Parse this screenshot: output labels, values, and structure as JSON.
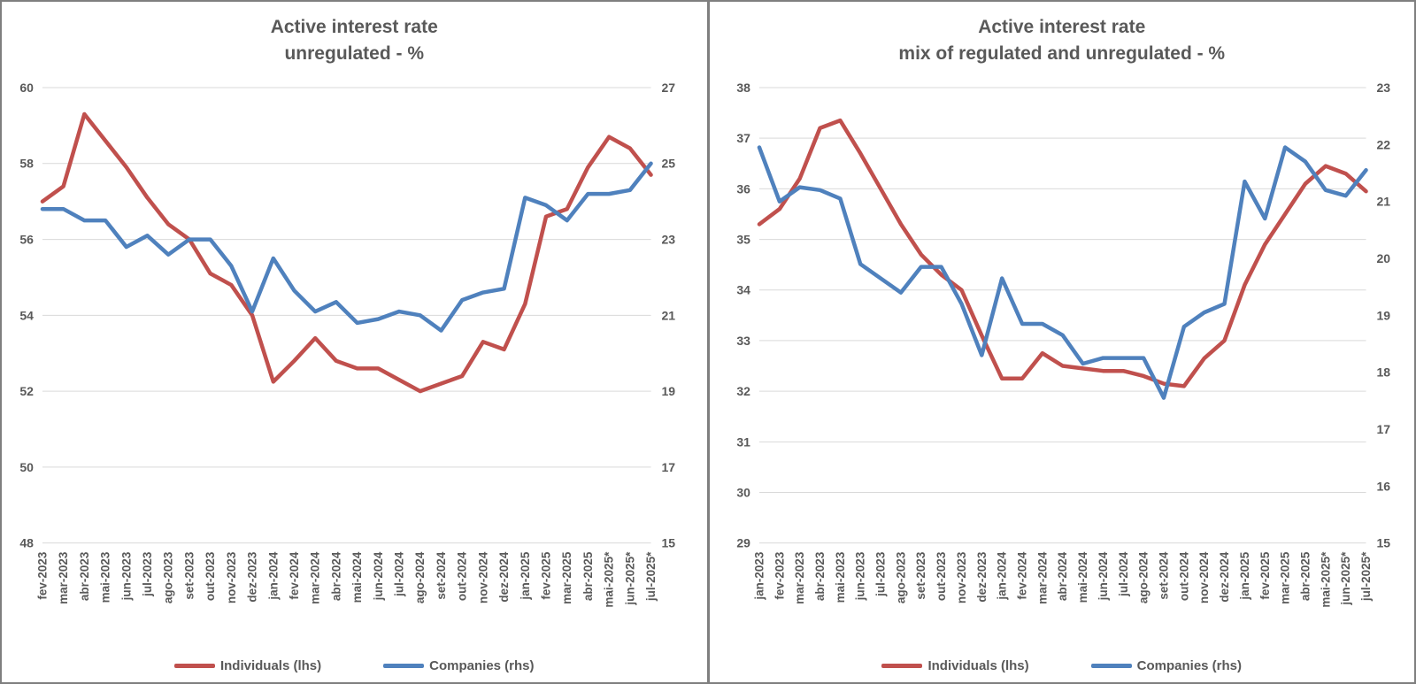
{
  "colors": {
    "individuals": "#C0504D",
    "companies": "#4F81BD",
    "grid": "#D9D9D9",
    "axis_text": "#595959",
    "title_text": "#595959",
    "panel_border": "#7F7F7F"
  },
  "chart_data": [
    {
      "type": "line",
      "title_line1": "Active interest rate",
      "title_line2": "unregulated - %",
      "grid": true,
      "legend_position": "bottom",
      "categories": [
        "fev-2023",
        "mar-2023",
        "abr-2023",
        "mai-2023",
        "jun-2023",
        "jul-2023",
        "ago-2023",
        "set-2023",
        "out-2023",
        "nov-2023",
        "dez-2023",
        "jan-2024",
        "fev-2024",
        "mar-2024",
        "abr-2024",
        "mai-2024",
        "jun-2024",
        "jul-2024",
        "ago-2024",
        "set-2024",
        "out-2024",
        "nov-2024",
        "dez-2024",
        "jan-2025",
        "fev-2025",
        "mar-2025",
        "abr-2025",
        "mai-2025*",
        "jun-2025*",
        "jul-2025*"
      ],
      "left_axis": {
        "min": 48,
        "max": 60,
        "ticks": [
          60,
          58,
          56,
          54,
          52,
          50,
          48
        ]
      },
      "right_axis": {
        "min": 15,
        "max": 27,
        "ticks": [
          27,
          25,
          23,
          21,
          19,
          17,
          15
        ]
      },
      "series": [
        {
          "name": "Individuals (lhs)",
          "axis": "left",
          "color": "#C0504D",
          "values": [
            57.0,
            57.4,
            59.3,
            58.6,
            57.9,
            57.1,
            56.4,
            56.0,
            55.1,
            54.8,
            54.0,
            52.25,
            52.8,
            53.4,
            52.8,
            52.6,
            52.6,
            52.3,
            52.0,
            52.2,
            52.4,
            53.3,
            53.1,
            54.3,
            56.6,
            56.8,
            57.9,
            58.7,
            58.4,
            57.7
          ]
        },
        {
          "name": "Companies (rhs)",
          "axis": "right",
          "color": "#4F81BD",
          "values": [
            23.8,
            23.8,
            23.5,
            23.5,
            22.8,
            23.1,
            22.6,
            23.0,
            23.0,
            22.3,
            21.1,
            22.5,
            21.65,
            21.1,
            21.35,
            20.8,
            20.9,
            21.1,
            21.0,
            20.6,
            21.4,
            21.6,
            21.7,
            24.1,
            23.9,
            23.5,
            24.2,
            24.2,
            24.3,
            25.0
          ]
        }
      ]
    },
    {
      "type": "line",
      "title_line1": "Active interest rate",
      "title_line2": "mix of regulated and unregulated - %",
      "grid": true,
      "legend_position": "bottom",
      "categories": [
        "jan-2023",
        "fev-2023",
        "mar-2023",
        "abr-2023",
        "mai-2023",
        "jun-2023",
        "jul-2023",
        "ago-2023",
        "set-2023",
        "out-2023",
        "nov-2023",
        "dez-2023",
        "jan-2024",
        "fev-2024",
        "mar-2024",
        "abr-2024",
        "mai-2024",
        "jun-2024",
        "jul-2024",
        "ago-2024",
        "set-2024",
        "out-2024",
        "nov-2024",
        "dez-2024",
        "jan-2025",
        "fev-2025",
        "mar-2025",
        "abr-2025",
        "mai-2025*",
        "jun-2025*",
        "jul-2025*"
      ],
      "left_axis": {
        "min": 29,
        "max": 38,
        "ticks": [
          38,
          37,
          36,
          35,
          34,
          33,
          32,
          31,
          30,
          29
        ]
      },
      "right_axis": {
        "min": 15,
        "max": 23,
        "ticks": [
          23,
          22,
          21,
          20,
          19,
          18,
          17,
          16,
          15
        ]
      },
      "series": [
        {
          "name": "Individuals (lhs)",
          "axis": "left",
          "color": "#C0504D",
          "values": [
            35.3,
            35.6,
            36.2,
            37.2,
            37.35,
            36.7,
            36.0,
            35.3,
            34.7,
            34.3,
            34.0,
            33.1,
            32.25,
            32.25,
            32.75,
            32.5,
            32.45,
            32.4,
            32.4,
            32.3,
            32.15,
            32.1,
            32.65,
            33.0,
            34.1,
            34.9,
            35.5,
            36.1,
            36.45,
            36.3,
            35.95
          ]
        },
        {
          "name": "Companies (rhs)",
          "axis": "right",
          "color": "#4F81BD",
          "values": [
            21.95,
            21.0,
            21.25,
            21.2,
            21.05,
            19.9,
            19.65,
            19.4,
            19.85,
            19.85,
            19.2,
            18.3,
            19.65,
            18.85,
            18.85,
            18.65,
            18.15,
            18.25,
            18.25,
            18.25,
            17.55,
            18.8,
            19.05,
            19.2,
            21.35,
            20.7,
            21.95,
            21.7,
            21.2,
            21.1,
            21.55
          ]
        }
      ]
    }
  ]
}
